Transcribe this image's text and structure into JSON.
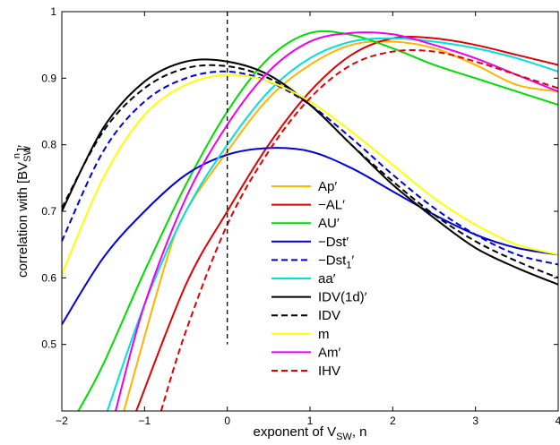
{
  "chart_data": {
    "type": "line",
    "xlabel": "exponent of V",
    "xlabel_sub": "SW",
    "xlabel_tail": ", n",
    "ylabel": "correlation with [BV",
    "ylabel_sub": "SW",
    "ylabel_sup": "n",
    "ylabel_tail": "]′",
    "xlim": [
      -2,
      4
    ],
    "ylim": [
      0.4,
      1.0
    ],
    "xticks": [
      -2,
      -1,
      0,
      1,
      2,
      3,
      4
    ],
    "yticks": [
      0.5,
      0.6,
      0.7,
      0.8,
      0.9,
      1.0
    ],
    "xtick_labels": [
      "−2",
      "−1",
      "0",
      "1",
      "2",
      "3",
      "4"
    ],
    "ytick_labels": [
      "0.5",
      "0.6",
      "0.7",
      "0.8",
      "0.9",
      "1"
    ],
    "grid": false,
    "legend_position": "lower-center",
    "vline": {
      "x": 0,
      "y_range": [
        0.5,
        1.0
      ],
      "style": "dashed",
      "color": "#000000"
    },
    "series": [
      {
        "name": "Ap′",
        "color": "#ffb400",
        "dash": false,
        "x": [
          -1.25,
          -0.75,
          -0.5,
          0,
          0.5,
          1,
          1.5,
          2,
          2.5,
          3,
          3.5,
          4
        ],
        "y": [
          0.4,
          0.62,
          0.7,
          0.79,
          0.87,
          0.92,
          0.95,
          0.955,
          0.945,
          0.92,
          0.89,
          0.88
        ]
      },
      {
        "name": "−AL′",
        "color": "#e00000",
        "dash": false,
        "x": [
          -1.1,
          -0.5,
          0,
          0.5,
          1,
          1.5,
          2,
          2.5,
          3,
          3.5,
          4
        ],
        "y": [
          0.4,
          0.59,
          0.7,
          0.8,
          0.88,
          0.935,
          0.96,
          0.96,
          0.95,
          0.935,
          0.92
        ]
      },
      {
        "name": "AU′",
        "color": "#00dd00",
        "dash": false,
        "x": [
          -1.8,
          -1.5,
          -1,
          -0.5,
          0,
          0.5,
          1,
          1.5,
          2,
          2.5,
          3,
          3.5,
          4
        ],
        "y": [
          0.4,
          0.47,
          0.61,
          0.74,
          0.85,
          0.93,
          0.968,
          0.965,
          0.945,
          0.92,
          0.9,
          0.88,
          0.86
        ]
      },
      {
        "name": "−Dst′",
        "color": "#0000dd",
        "dash": false,
        "x": [
          -2,
          -1.5,
          -1,
          -0.5,
          0,
          0.5,
          1,
          1.5,
          2,
          2.5,
          3,
          3.5,
          4
        ],
        "y": [
          0.53,
          0.63,
          0.7,
          0.755,
          0.785,
          0.795,
          0.79,
          0.765,
          0.73,
          0.695,
          0.665,
          0.645,
          0.635
        ]
      },
      {
        "name": "−Dst",
        "name_sub": "1",
        "name_tail": "′",
        "color": "#0000dd",
        "dash": true,
        "x": [
          -2,
          -1.5,
          -1,
          -0.5,
          0,
          0.5,
          1,
          1.5,
          2,
          2.5,
          3,
          3.5,
          4
        ],
        "y": [
          0.655,
          0.79,
          0.865,
          0.9,
          0.91,
          0.895,
          0.86,
          0.81,
          0.755,
          0.705,
          0.665,
          0.635,
          0.62
        ]
      },
      {
        "name": "aa′",
        "color": "#00e0e0",
        "dash": false,
        "x": [
          -1.45,
          -1,
          -0.5,
          0,
          0.5,
          1,
          1.5,
          2,
          2.5,
          3,
          3.5,
          4
        ],
        "y": [
          0.4,
          0.56,
          0.7,
          0.8,
          0.88,
          0.93,
          0.955,
          0.96,
          0.955,
          0.945,
          0.93,
          0.91
        ]
      },
      {
        "name": "IDV(1d)′",
        "color": "#000000",
        "dash": false,
        "x": [
          -2,
          -1.5,
          -1,
          -0.5,
          0,
          0.5,
          1,
          1.5,
          2,
          2.5,
          3,
          3.5,
          4
        ],
        "y": [
          0.7,
          0.825,
          0.895,
          0.925,
          0.925,
          0.905,
          0.86,
          0.8,
          0.74,
          0.69,
          0.645,
          0.615,
          0.59
        ]
      },
      {
        "name": "IDV",
        "color": "#000000",
        "dash": true,
        "x": [
          -2,
          -1.5,
          -1,
          -0.5,
          0,
          0.5,
          1,
          1.5,
          2,
          2.5,
          3,
          3.5,
          4
        ],
        "y": [
          0.705,
          0.82,
          0.885,
          0.915,
          0.918,
          0.9,
          0.86,
          0.8,
          0.745,
          0.695,
          0.655,
          0.625,
          0.6
        ]
      },
      {
        "name": "m",
        "color": "#ffff00",
        "dash": false,
        "x": [
          -2,
          -1.5,
          -1,
          -0.5,
          0,
          0.5,
          1,
          1.5,
          2,
          2.5,
          3,
          3.5,
          4
        ],
        "y": [
          0.605,
          0.75,
          0.845,
          0.89,
          0.905,
          0.895,
          0.865,
          0.82,
          0.77,
          0.72,
          0.68,
          0.65,
          0.635
        ]
      },
      {
        "name": "Am′",
        "color": "#ee00ee",
        "dash": false,
        "x": [
          -1.35,
          -1,
          -0.5,
          0,
          0.5,
          1,
          1.5,
          2,
          2.5,
          3,
          3.5,
          4
        ],
        "y": [
          0.4,
          0.56,
          0.72,
          0.83,
          0.91,
          0.955,
          0.968,
          0.966,
          0.95,
          0.93,
          0.905,
          0.88
        ]
      },
      {
        "name": "IHV",
        "color": "#e00000",
        "dash": true,
        "x": [
          -0.8,
          -0.5,
          0,
          0.5,
          1,
          1.5,
          2,
          2.5,
          3,
          3.5,
          4
        ],
        "y": [
          0.4,
          0.52,
          0.68,
          0.79,
          0.87,
          0.92,
          0.94,
          0.94,
          0.925,
          0.905,
          0.885
        ]
      }
    ]
  }
}
